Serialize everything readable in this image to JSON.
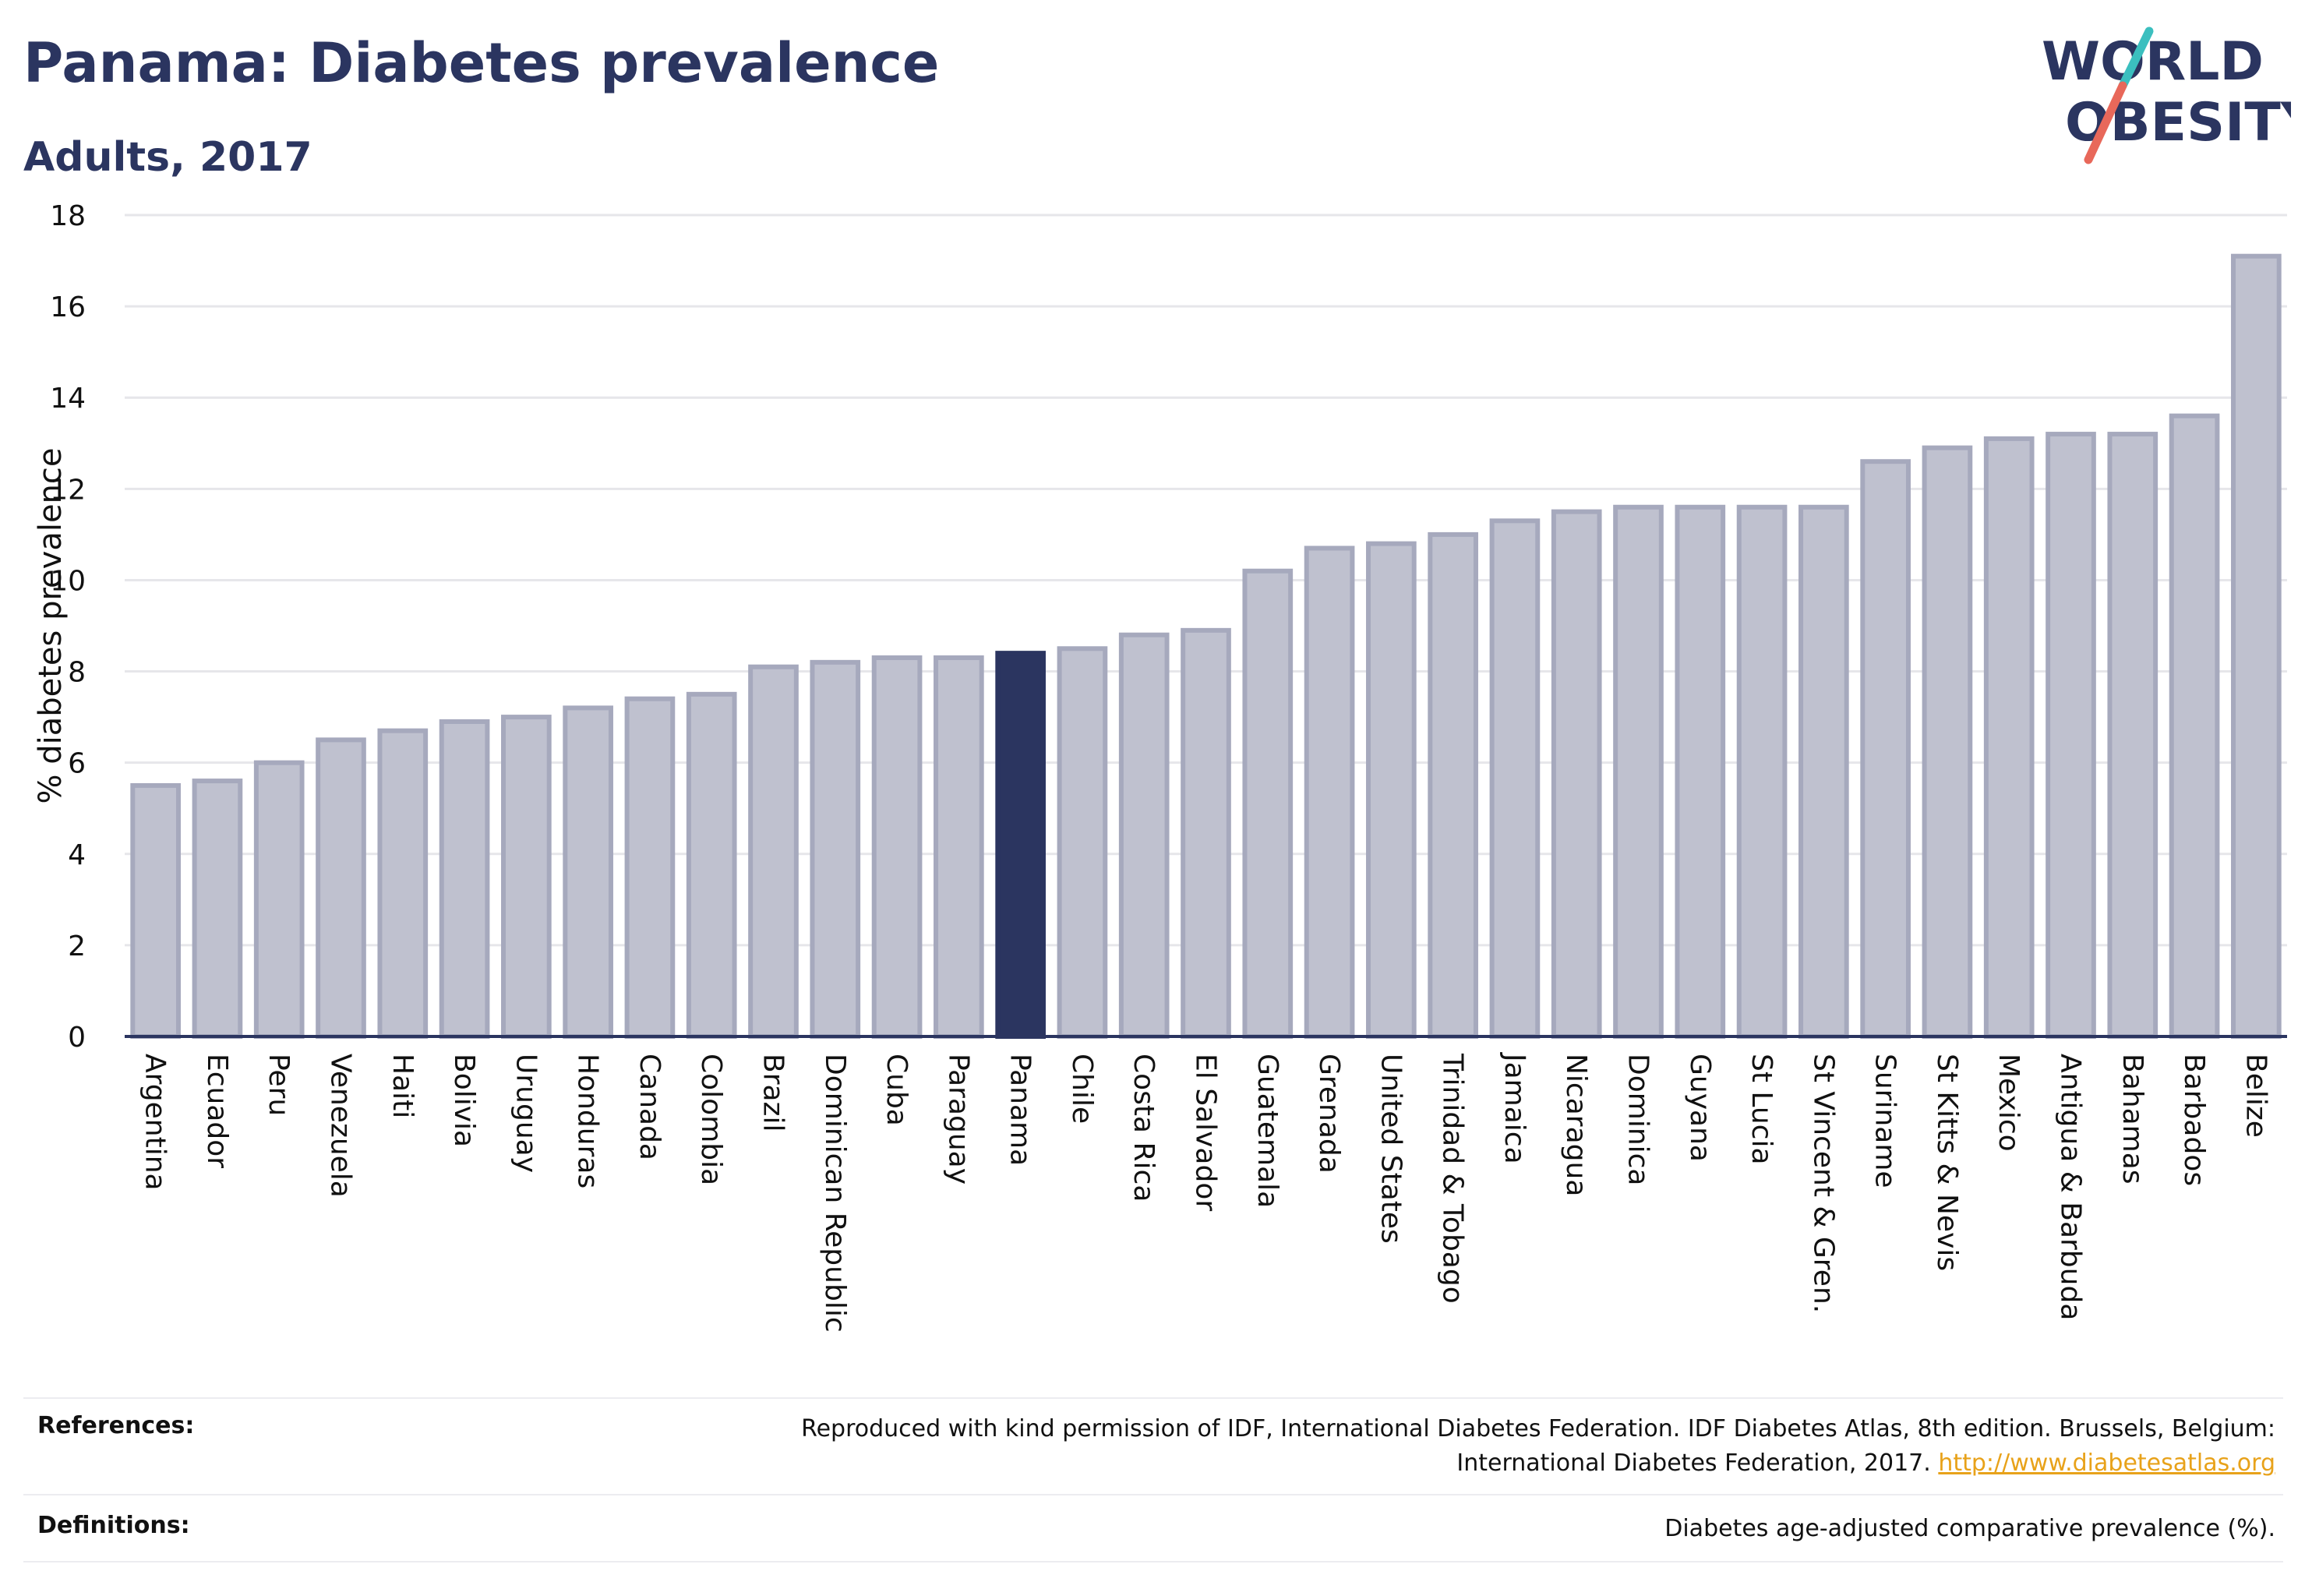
{
  "title": "Panama: Diabetes prevalence",
  "subtitle": "Adults, 2017",
  "logo": {
    "line1": "WORLD",
    "line2": "OBESITY",
    "text_color": "#2b3560",
    "slash_colors": [
      "#3bbfbf",
      "#e8685a"
    ]
  },
  "colors": {
    "bar": "#bfc1cf",
    "bar_border": "#a6a9bd",
    "highlight": "#2b3560",
    "text": "#2b3560",
    "link": "#e8a21a"
  },
  "chart_data": {
    "type": "bar",
    "title": "Panama: Diabetes prevalence",
    "subtitle": "Adults, 2017",
    "ylabel": "% diabetes prevalence",
    "xlabel": "",
    "ylim": [
      0,
      18
    ],
    "yticks": [
      0,
      2,
      4,
      6,
      8,
      10,
      12,
      14,
      16,
      18
    ],
    "grid": true,
    "highlight": "Panama",
    "categories": [
      "Argentina",
      "Ecuador",
      "Peru",
      "Venezuela",
      "Haiti",
      "Bolivia",
      "Uruguay",
      "Honduras",
      "Canada",
      "Colombia",
      "Brazil",
      "Dominican Republic",
      "Cuba",
      "Paraguay",
      "Panama",
      "Chile",
      "Costa Rica",
      "El Salvador",
      "Guatemala",
      "Grenada",
      "United States",
      "Trinidad & Tobago",
      "Jamaica",
      "Nicaragua",
      "Dominica",
      "Guyana",
      "St Lucia",
      "St Vincent & Gren.",
      "Suriname",
      "St Kitts & Nevis",
      "Mexico",
      "Antigua & Barbuda",
      "Bahamas",
      "Barbados",
      "Belize"
    ],
    "values": [
      5.5,
      5.6,
      6.0,
      6.5,
      6.7,
      6.9,
      7.0,
      7.2,
      7.4,
      7.5,
      8.1,
      8.2,
      8.3,
      8.3,
      8.4,
      8.5,
      8.8,
      8.9,
      10.2,
      10.7,
      10.8,
      11.0,
      11.3,
      11.5,
      11.6,
      11.6,
      11.6,
      11.6,
      12.6,
      12.9,
      13.1,
      13.2,
      13.2,
      13.6,
      17.1
    ]
  },
  "footer": {
    "references_label": "References:",
    "references_text_1": "Reproduced with kind permission of IDF, International Diabetes Federation. IDF Diabetes Atlas, 8th edition. Brussels, Belgium:",
    "references_text_2": "International Diabetes Federation, 2017.",
    "references_link": "http://www.diabetesatlas.org",
    "definitions_label": "Definitions:",
    "definitions_text": "Diabetes age-adjusted comparative prevalence (%)."
  }
}
